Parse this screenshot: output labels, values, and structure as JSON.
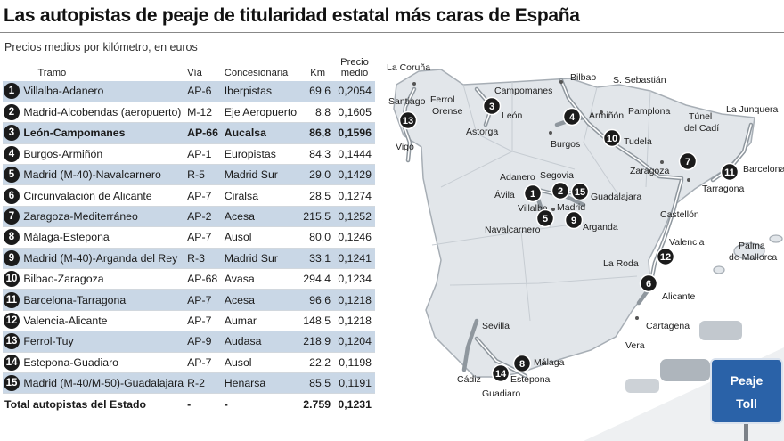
{
  "title": "Las autopistas de peaje de titularidad estatal más caras de España",
  "subtitle": "Precios medios por kilómetro, en euros",
  "table": {
    "headers": {
      "rank": "",
      "tramo": "Tramo",
      "via": "Vía",
      "concesionaria": "Concesionaria",
      "km": "Km",
      "precio_l1": "Precio",
      "precio_l2": "medio"
    },
    "rows": [
      {
        "n": "1",
        "tramo": "Villalba-Adanero",
        "via": "AP-6",
        "concesionaria": "Iberpistas",
        "km": "69,6",
        "precio": "0,2054"
      },
      {
        "n": "2",
        "tramo": "Madrid-Alcobendas (aeropuerto)",
        "via": "M-12",
        "concesionaria": "Eje Aeropuerto",
        "km": "8,8",
        "precio": "0,1605"
      },
      {
        "n": "3",
        "tramo": "León-Campomanes",
        "via": "AP-66",
        "concesionaria": "Aucalsa",
        "km": "86,8",
        "precio": "0,1596"
      },
      {
        "n": "4",
        "tramo": "Burgos-Armiñón",
        "via": "AP-1",
        "concesionaria": "Europistas",
        "km": "84,3",
        "precio": "0,1444"
      },
      {
        "n": "5",
        "tramo": "Madrid (M-40)-Navalcarnero",
        "via": "R-5",
        "concesionaria": "Madrid Sur",
        "km": "29,0",
        "precio": "0,1429"
      },
      {
        "n": "6",
        "tramo": "Circunvalación de Alicante",
        "via": "AP-7",
        "concesionaria": "Ciralsa",
        "km": "28,5",
        "precio": "0,1274"
      },
      {
        "n": "7",
        "tramo": "Zaragoza-Mediterráneo",
        "via": "AP-2",
        "concesionaria": "Acesa",
        "km": "215,5",
        "precio": "0,1252"
      },
      {
        "n": "8",
        "tramo": "Málaga-Estepona",
        "via": "AP-7",
        "concesionaria": "Ausol",
        "km": "80,0",
        "precio": "0,1246"
      },
      {
        "n": "9",
        "tramo": "Madrid (M-40)-Arganda del Rey",
        "via": "R-3",
        "concesionaria": "Madrid Sur",
        "km": "33,1",
        "precio": "0,1241"
      },
      {
        "n": "10",
        "tramo": "Bilbao-Zaragoza",
        "via": "AP-68",
        "concesionaria": "Avasa",
        "km": "294,4",
        "precio": "0,1234"
      },
      {
        "n": "11",
        "tramo": "Barcelona-Tarragona",
        "via": "AP-7",
        "concesionaria": "Acesa",
        "km": "96,6",
        "precio": "0,1218"
      },
      {
        "n": "12",
        "tramo": "Valencia-Alicante",
        "via": "AP-7",
        "concesionaria": "Aumar",
        "km": "148,5",
        "precio": "0,1218"
      },
      {
        "n": "13",
        "tramo": "Ferrol-Tuy",
        "via": "AP-9",
        "concesionaria": "Audasa",
        "km": "218,9",
        "precio": "0,1204"
      },
      {
        "n": "14",
        "tramo": "Estepona-Guadiaro",
        "via": "AP-7",
        "concesionaria": "Ausol",
        "km": "22,2",
        "precio": "0,1198"
      },
      {
        "n": "15",
        "tramo": "Madrid (M-40/M-50)-Guadalajara",
        "via": "R-2",
        "concesionaria": "Henarsa",
        "km": "85,5",
        "precio": "0,1191"
      }
    ],
    "total": {
      "tramo": "Total autopistas del Estado",
      "via": "-",
      "concesionaria": "-",
      "km": "2.759",
      "precio": "0,1231"
    }
  },
  "chart_data": {
    "type": "table",
    "title": "Las autopistas de peaje de titularidad estatal más caras de España",
    "subtitle": "Precios medios por kilómetro, en euros",
    "columns": [
      "Tramo",
      "Vía",
      "Concesionaria",
      "Km",
      "Precio medio"
    ],
    "rows": [
      [
        "Villalba-Adanero",
        "AP-6",
        "Iberpistas",
        69.6,
        0.2054
      ],
      [
        "Madrid-Alcobendas (aeropuerto)",
        "M-12",
        "Eje Aeropuerto",
        8.8,
        0.1605
      ],
      [
        "León-Campomanes",
        "AP-66",
        "Aucalsa",
        86.8,
        0.1596
      ],
      [
        "Burgos-Armiñón",
        "AP-1",
        "Europistas",
        84.3,
        0.1444
      ],
      [
        "Madrid (M-40)-Navalcarnero",
        "R-5",
        "Madrid Sur",
        29.0,
        0.1429
      ],
      [
        "Circunvalación de Alicante",
        "AP-7",
        "Ciralsa",
        28.5,
        0.1274
      ],
      [
        "Zaragoza-Mediterráneo",
        "AP-2",
        "Acesa",
        215.5,
        0.1252
      ],
      [
        "Málaga-Estepona",
        "AP-7",
        "Ausol",
        80.0,
        0.1246
      ],
      [
        "Madrid (M-40)-Arganda del Rey",
        "R-3",
        "Madrid Sur",
        33.1,
        0.1241
      ],
      [
        "Bilbao-Zaragoza",
        "AP-68",
        "Avasa",
        294.4,
        0.1234
      ],
      [
        "Barcelona-Tarragona",
        "AP-7",
        "Acesa",
        96.6,
        0.1218
      ],
      [
        "Valencia-Alicante",
        "AP-7",
        "Aumar",
        148.5,
        0.1218
      ],
      [
        "Ferrol-Tuy",
        "AP-9",
        "Audasa",
        218.9,
        0.1204
      ],
      [
        "Estepona-Guadiaro",
        "AP-7",
        "Ausol",
        22.2,
        0.1198
      ],
      [
        "Madrid (M-40/M-50)-Guadalajara",
        "R-2",
        "Henarsa",
        85.5,
        0.1191
      ]
    ],
    "total": [
      "Total autopistas del Estado",
      "-",
      "-",
      2759,
      0.1231
    ]
  },
  "map": {
    "cities": [
      "La Coruña",
      "Ferrol",
      "Santiago",
      "Orense",
      "Vigo",
      "Campomanes",
      "León",
      "Astorga",
      "Bilbao",
      "S. Sebastián",
      "Pamplona",
      "Armiñón",
      "Burgos",
      "Tudela",
      "La Junquera",
      "Túnel del Cadí",
      "Zaragoza",
      "Barcelona",
      "Tarragona",
      "Adanero",
      "Segovia",
      "Ávila",
      "Villalba",
      "Madrid",
      "Guadalajara",
      "Navalcarnero",
      "Arganda",
      "Castellón",
      "Valencia",
      "Palma de Mallorca",
      "La Roda",
      "Alicante",
      "Cartagena",
      "Vera",
      "Sevilla",
      "Cádiz",
      "Málaga",
      "Estepona",
      "Guadiaro"
    ],
    "sign": {
      "line1": "Peaje",
      "line2": "Toll"
    }
  }
}
